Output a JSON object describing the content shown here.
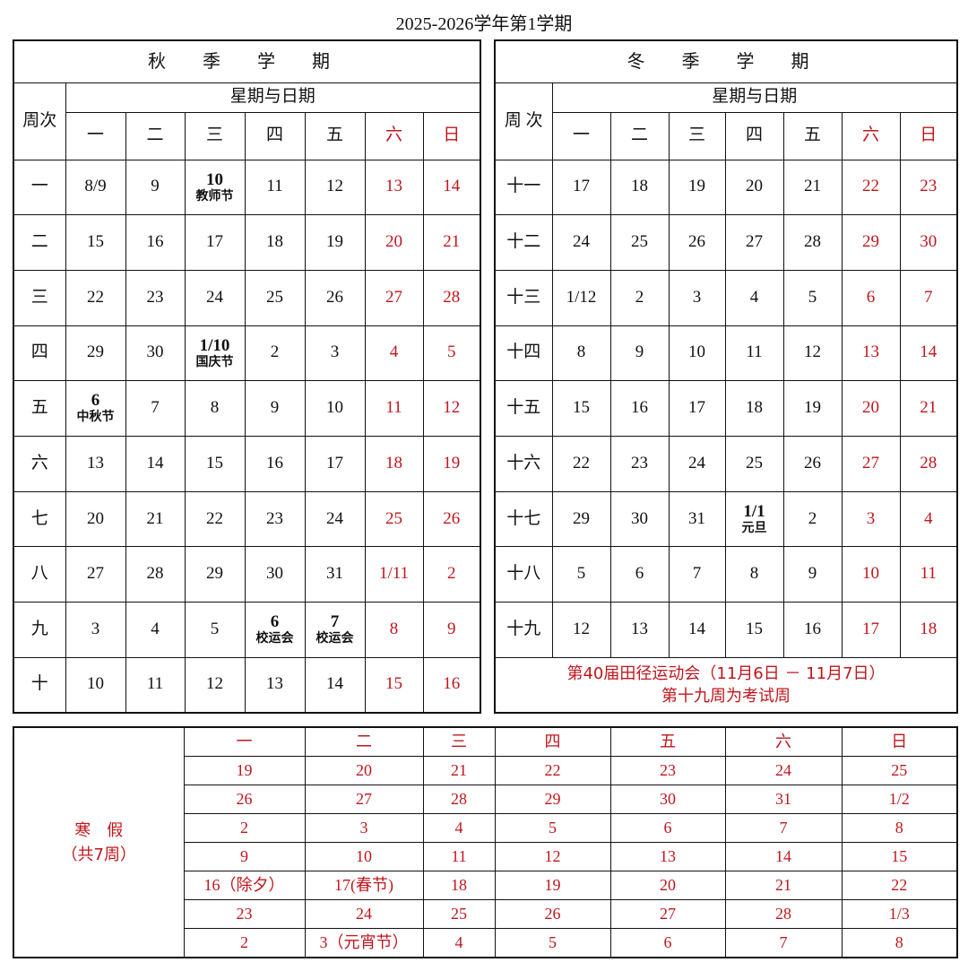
{
  "title": "2025-2026学年第1学期",
  "weekday_header": "星期与日期",
  "week_label": "周次",
  "days": [
    "一",
    "二",
    "三",
    "四",
    "五",
    "六",
    "日"
  ],
  "autumn": {
    "name": "秋 季 学 期",
    "weeks": [
      {
        "w": "一",
        "c": [
          {
            "d": "8/9"
          },
          {
            "d": "9"
          },
          {
            "d": "10",
            "n": "教师节"
          },
          {
            "d": "11"
          },
          {
            "d": "12"
          },
          {
            "d": "13"
          },
          {
            "d": "14"
          }
        ]
      },
      {
        "w": "二",
        "c": [
          {
            "d": "15"
          },
          {
            "d": "16"
          },
          {
            "d": "17"
          },
          {
            "d": "18"
          },
          {
            "d": "19"
          },
          {
            "d": "20"
          },
          {
            "d": "21"
          }
        ]
      },
      {
        "w": "三",
        "c": [
          {
            "d": "22"
          },
          {
            "d": "23"
          },
          {
            "d": "24"
          },
          {
            "d": "25"
          },
          {
            "d": "26"
          },
          {
            "d": "27"
          },
          {
            "d": "28"
          }
        ]
      },
      {
        "w": "四",
        "c": [
          {
            "d": "29"
          },
          {
            "d": "30"
          },
          {
            "d": "1/10",
            "n": "国庆节"
          },
          {
            "d": "2"
          },
          {
            "d": "3"
          },
          {
            "d": "4"
          },
          {
            "d": "5"
          }
        ]
      },
      {
        "w": "五",
        "c": [
          {
            "d": "6",
            "n": "中秋节"
          },
          {
            "d": "7"
          },
          {
            "d": "8"
          },
          {
            "d": "9"
          },
          {
            "d": "10"
          },
          {
            "d": "11"
          },
          {
            "d": "12"
          }
        ]
      },
      {
        "w": "六",
        "c": [
          {
            "d": "13"
          },
          {
            "d": "14"
          },
          {
            "d": "15"
          },
          {
            "d": "16"
          },
          {
            "d": "17"
          },
          {
            "d": "18"
          },
          {
            "d": "19"
          }
        ]
      },
      {
        "w": "七",
        "c": [
          {
            "d": "20"
          },
          {
            "d": "21"
          },
          {
            "d": "22"
          },
          {
            "d": "23"
          },
          {
            "d": "24"
          },
          {
            "d": "25"
          },
          {
            "d": "26"
          }
        ]
      },
      {
        "w": "八",
        "c": [
          {
            "d": "27"
          },
          {
            "d": "28"
          },
          {
            "d": "29"
          },
          {
            "d": "30"
          },
          {
            "d": "31"
          },
          {
            "d": "1/11"
          },
          {
            "d": "2"
          }
        ]
      },
      {
        "w": "九",
        "c": [
          {
            "d": "3"
          },
          {
            "d": "4"
          },
          {
            "d": "5"
          },
          {
            "d": "6",
            "n": "校运会"
          },
          {
            "d": "7",
            "n": "校运会"
          },
          {
            "d": "8"
          },
          {
            "d": "9"
          }
        ]
      },
      {
        "w": "十",
        "c": [
          {
            "d": "10"
          },
          {
            "d": "11"
          },
          {
            "d": "12"
          },
          {
            "d": "13"
          },
          {
            "d": "14"
          },
          {
            "d": "15"
          },
          {
            "d": "16"
          }
        ]
      }
    ]
  },
  "winter": {
    "name": "冬 季 学 期",
    "week_label": "周 次",
    "weeks": [
      {
        "w": "十一",
        "c": [
          {
            "d": "17"
          },
          {
            "d": "18"
          },
          {
            "d": "19"
          },
          {
            "d": "20"
          },
          {
            "d": "21"
          },
          {
            "d": "22"
          },
          {
            "d": "23"
          }
        ]
      },
      {
        "w": "十二",
        "c": [
          {
            "d": "24"
          },
          {
            "d": "25"
          },
          {
            "d": "26"
          },
          {
            "d": "27"
          },
          {
            "d": "28"
          },
          {
            "d": "29"
          },
          {
            "d": "30"
          }
        ]
      },
      {
        "w": "十三",
        "c": [
          {
            "d": "1/12"
          },
          {
            "d": "2"
          },
          {
            "d": "3"
          },
          {
            "d": "4"
          },
          {
            "d": "5"
          },
          {
            "d": "6"
          },
          {
            "d": "7"
          }
        ]
      },
      {
        "w": "十四",
        "c": [
          {
            "d": "8"
          },
          {
            "d": "9"
          },
          {
            "d": "10"
          },
          {
            "d": "11"
          },
          {
            "d": "12"
          },
          {
            "d": "13"
          },
          {
            "d": "14"
          }
        ]
      },
      {
        "w": "十五",
        "c": [
          {
            "d": "15"
          },
          {
            "d": "16"
          },
          {
            "d": "17"
          },
          {
            "d": "18"
          },
          {
            "d": "19"
          },
          {
            "d": "20"
          },
          {
            "d": "21"
          }
        ]
      },
      {
        "w": "十六",
        "c": [
          {
            "d": "22"
          },
          {
            "d": "23"
          },
          {
            "d": "24"
          },
          {
            "d": "25"
          },
          {
            "d": "26"
          },
          {
            "d": "27"
          },
          {
            "d": "28"
          }
        ]
      },
      {
        "w": "十七",
        "c": [
          {
            "d": "29"
          },
          {
            "d": "30"
          },
          {
            "d": "31"
          },
          {
            "d": "1/1",
            "n": "元旦"
          },
          {
            "d": "2"
          },
          {
            "d": "3"
          },
          {
            "d": "4"
          }
        ]
      },
      {
        "w": "十八",
        "c": [
          {
            "d": "5"
          },
          {
            "d": "6"
          },
          {
            "d": "7"
          },
          {
            "d": "8"
          },
          {
            "d": "9"
          },
          {
            "d": "10"
          },
          {
            "d": "11"
          }
        ]
      },
      {
        "w": "十九",
        "c": [
          {
            "d": "12"
          },
          {
            "d": "13"
          },
          {
            "d": "14"
          },
          {
            "d": "15"
          },
          {
            "d": "16"
          },
          {
            "d": "17"
          },
          {
            "d": "18"
          }
        ]
      }
    ],
    "footer": [
      "第40届田径运动会（11月6日 － 11月7日）",
      "第十九周为考试周"
    ]
  },
  "holiday": {
    "label": "寒　假",
    "sub": "（共7周）",
    "rows": [
      [
        "19",
        "20",
        "21",
        "22",
        "23",
        "24",
        "25"
      ],
      [
        "26",
        "27",
        "28",
        "29",
        "30",
        "31",
        "1/2"
      ],
      [
        "2",
        "3",
        "4",
        "5",
        "6",
        "7",
        "8"
      ],
      [
        "9",
        "10",
        "11",
        "12",
        "13",
        "14",
        "15"
      ],
      [
        "16（除夕）",
        "17(春节)",
        "18",
        "19",
        "20",
        "21",
        "22"
      ],
      [
        "23",
        "24",
        "25",
        "26",
        "27",
        "28",
        "1/3"
      ],
      [
        "2",
        "3（元宵节）",
        "4",
        "5",
        "6",
        "7",
        "8"
      ]
    ]
  },
  "colors": {
    "weekend": "#c0161c",
    "text": "#111111"
  }
}
